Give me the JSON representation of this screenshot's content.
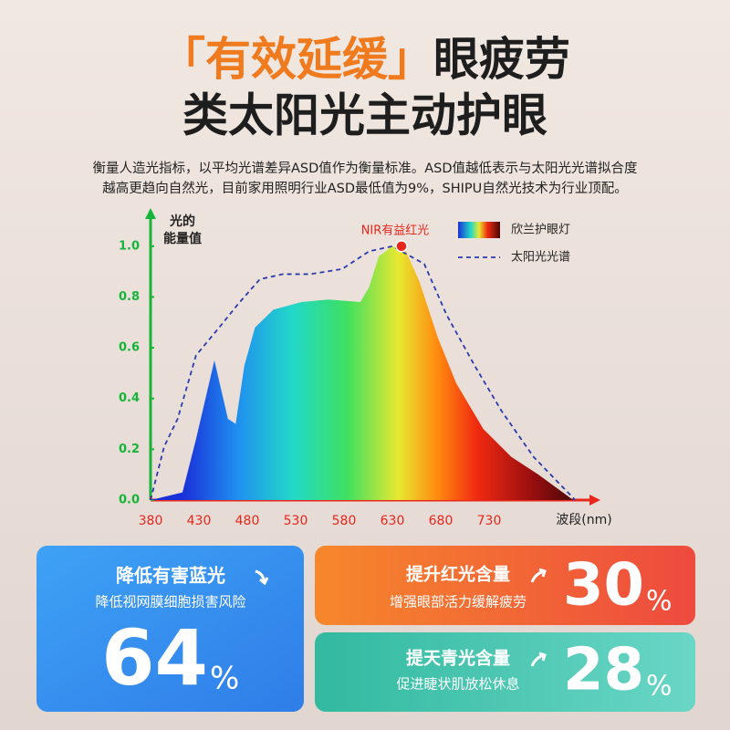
{
  "header": {
    "title_highlight": "「有效延缓」",
    "title_rest": "眼疲劳",
    "title_line2": "类太阳光主动护眼",
    "description": [
      "衡量人造光指标，以平均光谱差异ASD值作为衡量标准。ASD值越低表示与太阳光光谱拟合度",
      "越高更趋向自然光，目前家用照明行业ASD最低值为9%，SHIPU自然光技术为行业顶配。"
    ]
  },
  "chart_data": {
    "type": "area",
    "y_label": [
      "光的",
      "能量值"
    ],
    "x_label": "波段(nm)",
    "annotation": "NIR有益红光",
    "xlim": [
      380,
      830
    ],
    "ylim": [
      0,
      1.1
    ],
    "xticks": [
      380,
      430,
      480,
      530,
      580,
      630,
      680,
      730
    ],
    "yticks": [
      {
        "value": 0,
        "label": "0.0"
      },
      {
        "value": 0.2,
        "label": "0.2"
      },
      {
        "value": 0.4,
        "label": "0.4"
      },
      {
        "value": 0.6,
        "label": "0.6"
      },
      {
        "value": 0.8,
        "label": "0.8"
      },
      {
        "value": 1,
        "label": "1.0"
      }
    ],
    "grid": false,
    "legend": "upper right",
    "series": [
      {
        "name": "欣兰护眼灯",
        "style": "gradient-fill",
        "x": [
          380,
          413,
          427,
          446,
          460,
          468,
          477,
          488,
          507,
          536,
          564,
          597,
          606,
          616,
          630,
          644,
          658,
          677,
          696,
          724,
          753,
          781,
          817
        ],
        "values": [
          0,
          0.03,
          0.24,
          0.55,
          0.32,
          0.3,
          0.53,
          0.68,
          0.75,
          0.78,
          0.79,
          0.78,
          0.84,
          0.96,
          1,
          0.98,
          0.86,
          0.64,
          0.46,
          0.28,
          0.17,
          0.1,
          0
        ]
      },
      {
        "name": "太阳光光谱",
        "style": "dashed",
        "color": "#2a3bb0",
        "x": [
          380,
          394,
          408,
          427,
          451,
          470,
          493,
          517,
          545,
          578,
          606,
          630,
          663,
          686,
          715,
          743,
          776,
          819
        ],
        "values": [
          0,
          0.21,
          0.32,
          0.57,
          0.68,
          0.77,
          0.87,
          0.89,
          0.89,
          0.91,
          0.98,
          1,
          0.93,
          0.73,
          0.53,
          0.35,
          0.17,
          0
        ]
      }
    ]
  },
  "cards": [
    {
      "title": "降低有害蓝光",
      "subtitle": "降低视网膜细胞损害风险",
      "number": "64",
      "unit": "%"
    },
    {
      "title": "提升红光含量",
      "subtitle": "增强眼部活力缓解疲劳",
      "number": "30",
      "unit": "%"
    },
    {
      "title": "提天青光含量",
      "subtitle": "促进睫状肌放松休息",
      "number": "28",
      "unit": "%"
    }
  ]
}
